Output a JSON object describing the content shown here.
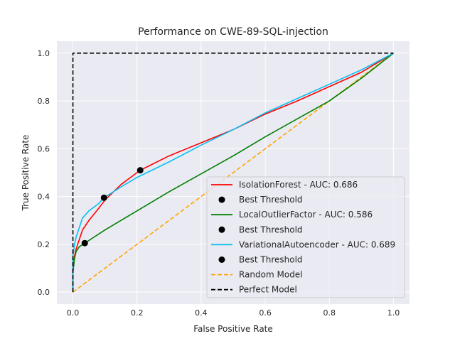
{
  "chart_data": {
    "type": "line",
    "title": "Performance on CWE-89-SQL-injection",
    "xlabel": "False Positive Rate",
    "ylabel": "True Positive Rate",
    "xlim": [
      -0.05,
      1.05
    ],
    "ylim": [
      -0.05,
      1.05
    ],
    "xticks": [
      "0.0",
      "0.2",
      "0.4",
      "0.6",
      "0.8",
      "1.0"
    ],
    "yticks": [
      "0.0",
      "0.2",
      "0.4",
      "0.6",
      "0.8",
      "1.0"
    ],
    "grid": true,
    "background": "#eaeaf2",
    "legend_position": "lower-right",
    "series": [
      {
        "name": "IsolationForest - AUC: 0.686",
        "color": "#ff0000",
        "style": "solid",
        "points": [
          [
            0,
            0
          ],
          [
            0,
            0.1
          ],
          [
            0.005,
            0.15
          ],
          [
            0.01,
            0.18
          ],
          [
            0.02,
            0.22
          ],
          [
            0.03,
            0.26
          ],
          [
            0.05,
            0.3
          ],
          [
            0.08,
            0.35
          ],
          [
            0.1,
            0.385
          ],
          [
            0.15,
            0.45
          ],
          [
            0.21,
            0.51
          ],
          [
            0.3,
            0.57
          ],
          [
            0.4,
            0.625
          ],
          [
            0.5,
            0.68
          ],
          [
            0.6,
            0.745
          ],
          [
            0.7,
            0.8
          ],
          [
            0.8,
            0.86
          ],
          [
            0.9,
            0.92
          ],
          [
            1.0,
            1.0
          ]
        ]
      },
      {
        "name": "LocalOutlierFactor - AUC: 0.586",
        "color": "#008000",
        "style": "solid",
        "points": [
          [
            0,
            0
          ],
          [
            0,
            0.08
          ],
          [
            0.005,
            0.14
          ],
          [
            0.01,
            0.17
          ],
          [
            0.02,
            0.19
          ],
          [
            0.037,
            0.205
          ],
          [
            0.06,
            0.225
          ],
          [
            0.1,
            0.26
          ],
          [
            0.2,
            0.34
          ],
          [
            0.3,
            0.42
          ],
          [
            0.4,
            0.495
          ],
          [
            0.5,
            0.57
          ],
          [
            0.6,
            0.65
          ],
          [
            0.7,
            0.725
          ],
          [
            0.8,
            0.8
          ],
          [
            0.9,
            0.895
          ],
          [
            1.0,
            1.0
          ]
        ]
      },
      {
        "name": "VariationalAutoencoder - AUC: 0.689",
        "color": "#0abff0",
        "style": "solid",
        "points": [
          [
            0,
            0
          ],
          [
            0,
            0.15
          ],
          [
            0.005,
            0.2
          ],
          [
            0.01,
            0.23
          ],
          [
            0.02,
            0.27
          ],
          [
            0.03,
            0.31
          ],
          [
            0.05,
            0.34
          ],
          [
            0.08,
            0.37
          ],
          [
            0.097,
            0.395
          ],
          [
            0.15,
            0.44
          ],
          [
            0.2,
            0.48
          ],
          [
            0.3,
            0.545
          ],
          [
            0.4,
            0.615
          ],
          [
            0.5,
            0.68
          ],
          [
            0.6,
            0.75
          ],
          [
            0.7,
            0.81
          ],
          [
            0.8,
            0.87
          ],
          [
            0.9,
            0.93
          ],
          [
            1.0,
            1.0
          ]
        ]
      },
      {
        "name": "Random Model",
        "color": "#ffa500",
        "style": "dashed",
        "points": [
          [
            0,
            0
          ],
          [
            1,
            1
          ]
        ]
      },
      {
        "name": "Perfect Model",
        "color": "#000000",
        "style": "dashed",
        "points": [
          [
            0,
            0
          ],
          [
            0,
            1
          ],
          [
            1,
            1
          ]
        ]
      }
    ],
    "best_thresholds": [
      {
        "name": "Best Threshold",
        "x": 0.21,
        "y": 0.51,
        "color": "#000000"
      },
      {
        "name": "Best Threshold",
        "x": 0.037,
        "y": 0.205,
        "color": "#000000"
      },
      {
        "name": "Best Threshold",
        "x": 0.097,
        "y": 0.395,
        "color": "#000000"
      }
    ],
    "legend": [
      {
        "label": "IsolationForest - AUC: 0.686",
        "kind": "line",
        "color": "#ff0000",
        "style": "solid"
      },
      {
        "label": "Best Threshold",
        "kind": "marker",
        "color": "#000000"
      },
      {
        "label": "LocalOutlierFactor - AUC: 0.586",
        "kind": "line",
        "color": "#008000",
        "style": "solid"
      },
      {
        "label": "Best Threshold",
        "kind": "marker",
        "color": "#000000"
      },
      {
        "label": "VariationalAutoencoder - AUC: 0.689",
        "kind": "line",
        "color": "#0abff0",
        "style": "solid"
      },
      {
        "label": "Best Threshold",
        "kind": "marker",
        "color": "#000000"
      },
      {
        "label": "Random Model",
        "kind": "line",
        "color": "#ffa500",
        "style": "dashed"
      },
      {
        "label": "Perfect Model",
        "kind": "line",
        "color": "#000000",
        "style": "dashed"
      }
    ]
  }
}
